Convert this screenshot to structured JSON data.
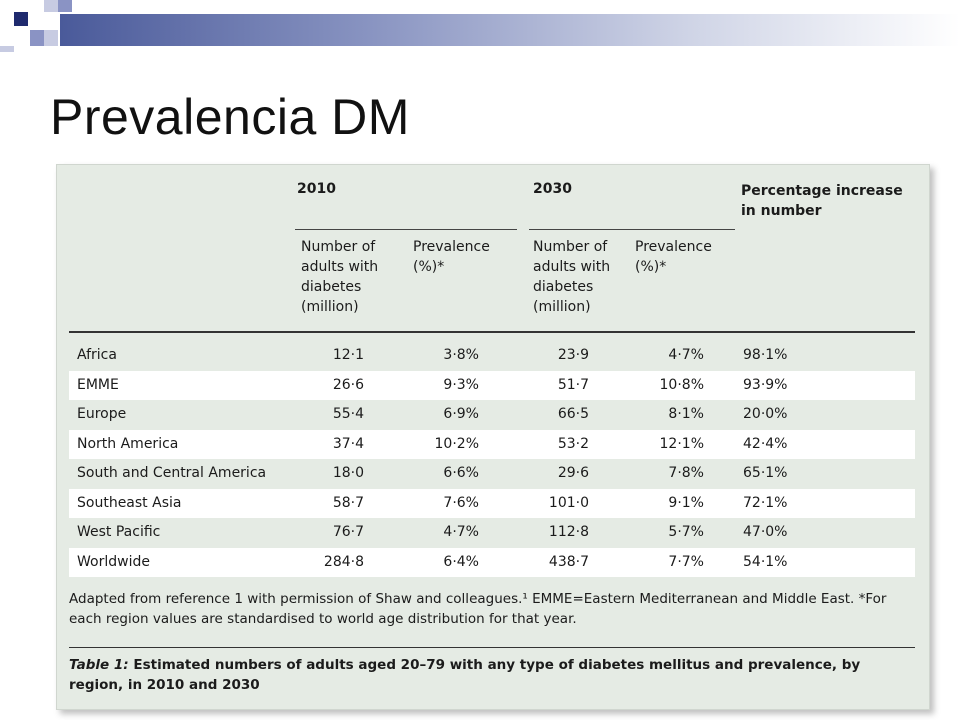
{
  "slide": {
    "title": "Prevalencia DM"
  },
  "colors": {
    "band_dark": "#1f2a6e",
    "band_mid": "#8a93c4",
    "band_light": "#c7cbe2",
    "panel_bg": "#e5ebe4"
  },
  "table": {
    "year_2010": "2010",
    "year_2030": "2030",
    "pct_header": "Percentage increase in number",
    "sub_number": "Number of adults with diabetes (million)",
    "sub_prevalence": "Prevalence (%)*",
    "rows": [
      {
        "region": "Africa",
        "n2010": "12·1",
        "p2010": "3·8%",
        "n2030": "23·9",
        "p2030": "4·7%",
        "inc": "98·1%"
      },
      {
        "region": "EMME",
        "n2010": "26·6",
        "p2010": "9·3%",
        "n2030": "51·7",
        "p2030": "10·8%",
        "inc": "93·9%"
      },
      {
        "region": "Europe",
        "n2010": "55·4",
        "p2010": "6·9%",
        "n2030": "66·5",
        "p2030": "8·1%",
        "inc": "20·0%"
      },
      {
        "region": "North America",
        "n2010": "37·4",
        "p2010": "10·2%",
        "n2030": "53·2",
        "p2030": "12·1%",
        "inc": "42·4%"
      },
      {
        "region": "South and Central America",
        "n2010": "18·0",
        "p2010": "6·6%",
        "n2030": "29·6",
        "p2030": "7·8%",
        "inc": "65·1%"
      },
      {
        "region": "Southeast Asia",
        "n2010": "58·7",
        "p2010": "7·6%",
        "n2030": "101·0",
        "p2030": "9·1%",
        "inc": "72·1%"
      },
      {
        "region": "West Pacific",
        "n2010": "76·7",
        "p2010": "4·7%",
        "n2030": "112·8",
        "p2030": "5·7%",
        "inc": "47·0%"
      },
      {
        "region": "Worldwide",
        "n2010": "284·8",
        "p2010": "6·4%",
        "n2030": "438·7",
        "p2030": "7·7%",
        "inc": "54·1%"
      }
    ],
    "footnote": "Adapted from reference 1 with permission of Shaw and colleagues.¹ EMME=Eastern Mediterranean and Middle East. *For each region values are standardised to world age distribution for that year.",
    "caption_label": "Table 1:",
    "caption_text": " Estimated numbers of adults aged 20–79 with any type of diabetes mellitus and prevalence, by region, in 2010 and 2030"
  }
}
